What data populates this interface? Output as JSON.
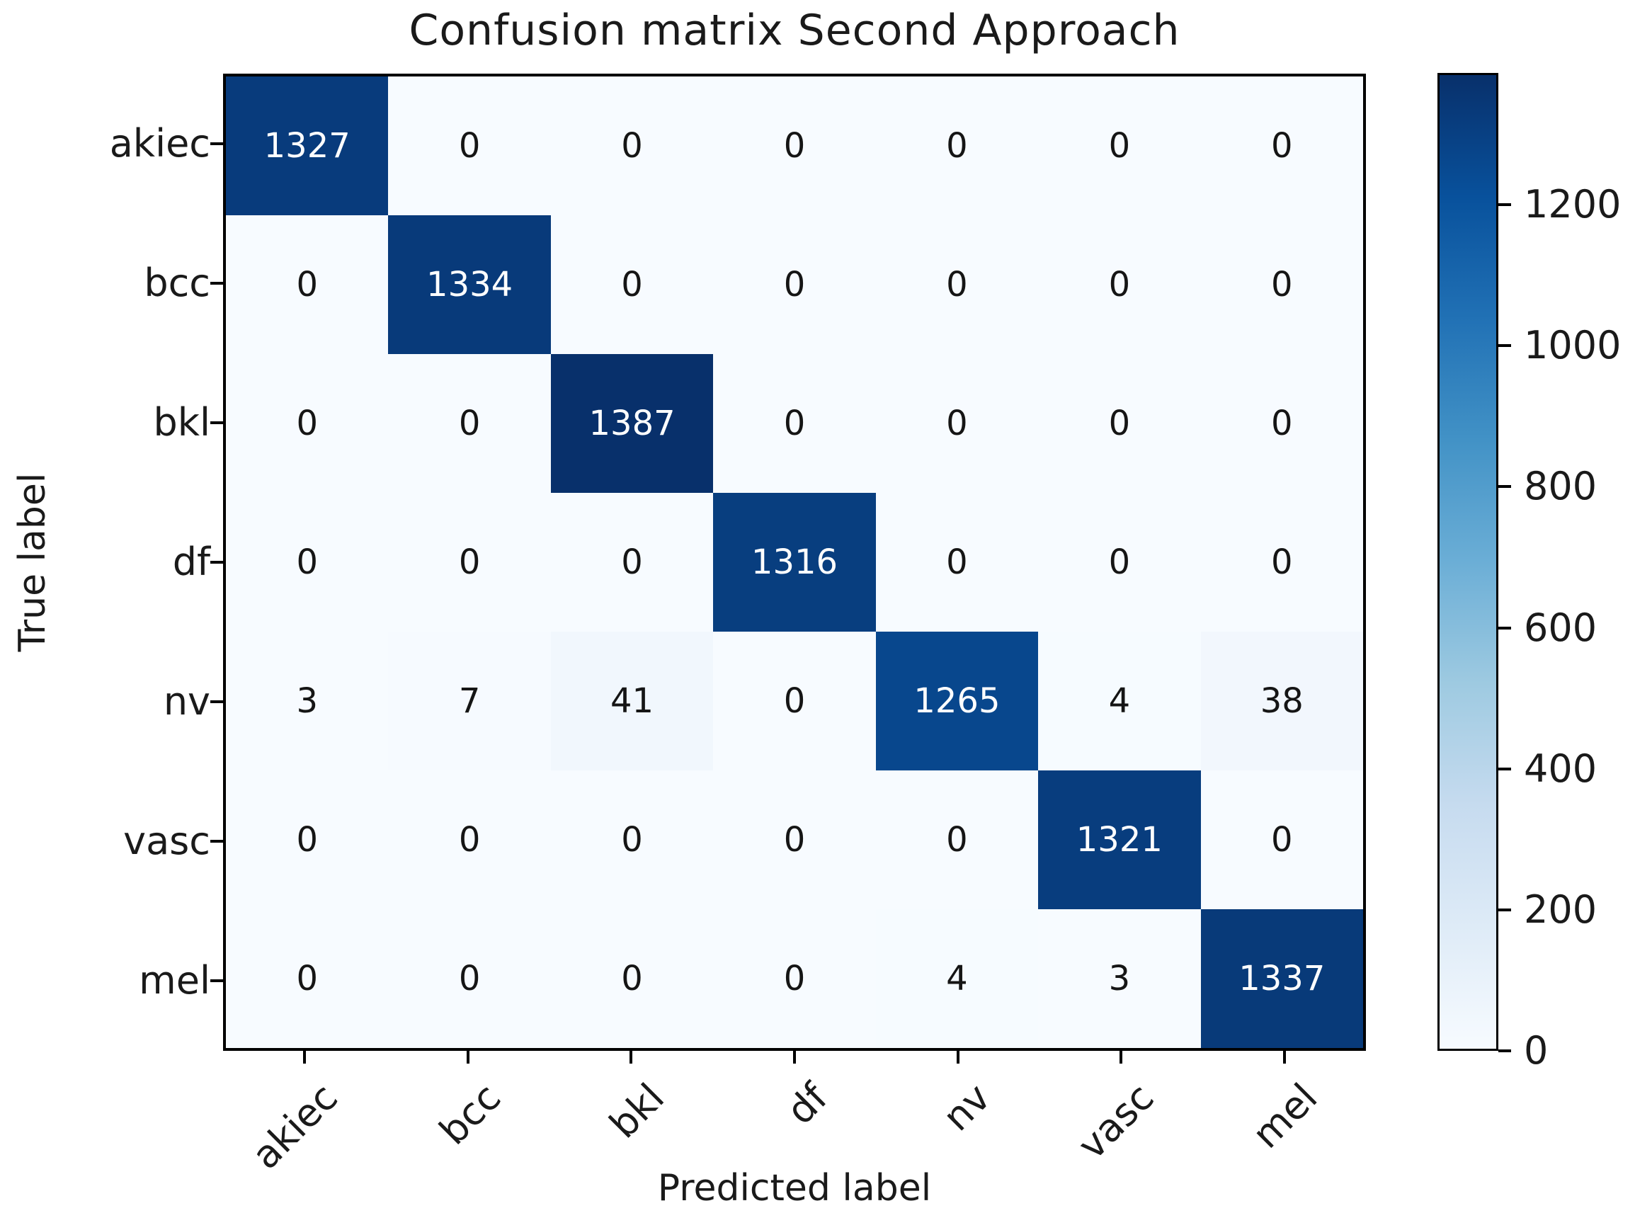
{
  "chart_data": {
    "type": "heatmap",
    "title": "Confusion matrix Second Approach",
    "xlabel": "Predicted label",
    "ylabel": "True label",
    "x_tick_labels": [
      "akiec",
      "bcc",
      "bkl",
      "df",
      "nv",
      "vasc",
      "mel"
    ],
    "y_tick_labels": [
      "akiec",
      "bcc",
      "bkl",
      "df",
      "nv",
      "vasc",
      "mel"
    ],
    "matrix": [
      [
        1327,
        0,
        0,
        0,
        0,
        0,
        0
      ],
      [
        0,
        1334,
        0,
        0,
        0,
        0,
        0
      ],
      [
        0,
        0,
        1387,
        0,
        0,
        0,
        0
      ],
      [
        0,
        0,
        0,
        1316,
        0,
        0,
        0
      ],
      [
        3,
        7,
        41,
        0,
        1265,
        4,
        38
      ],
      [
        0,
        0,
        0,
        0,
        0,
        1321,
        0
      ],
      [
        0,
        0,
        0,
        0,
        4,
        3,
        1337
      ]
    ],
    "vmin": 0,
    "vmax": 1387,
    "colorbar_ticks": [
      0,
      200,
      400,
      600,
      800,
      1000,
      1200
    ],
    "colormap": "Blues",
    "colormap_stops": [
      "#f7fbff",
      "#deebf7",
      "#c6dbef",
      "#9ecae1",
      "#6baed6",
      "#4292c6",
      "#2171b5",
      "#08519c",
      "#08306b"
    ],
    "colors": {
      "cell_text_light": "#ffffff",
      "cell_text_dark": "#151515",
      "spine": "#000000",
      "background": "#ffffff"
    }
  }
}
